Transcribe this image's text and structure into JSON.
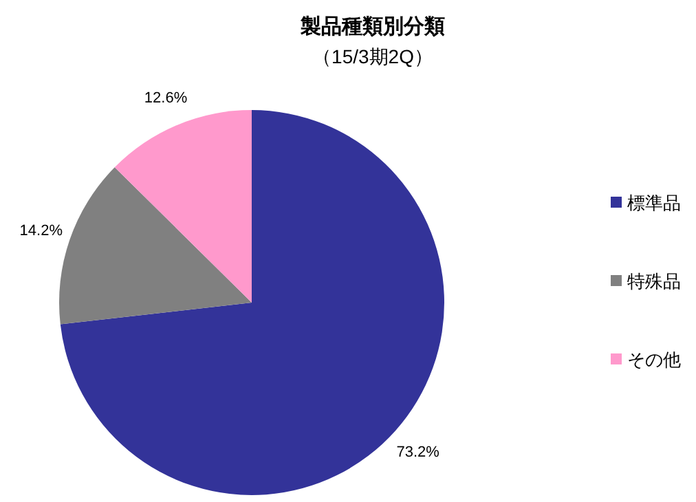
{
  "chart_data": {
    "type": "pie",
    "title": "製品種類別分類",
    "subtitle": "（15/3期2Q）",
    "categories": [
      "標準品",
      "特殊品",
      "その他"
    ],
    "values": [
      73.2,
      14.2,
      12.6
    ],
    "colors": [
      "#333399",
      "#808080",
      "#ff99cc"
    ],
    "value_labels": [
      "73.2%",
      "14.2%",
      "12.6%"
    ],
    "legend": "right"
  }
}
